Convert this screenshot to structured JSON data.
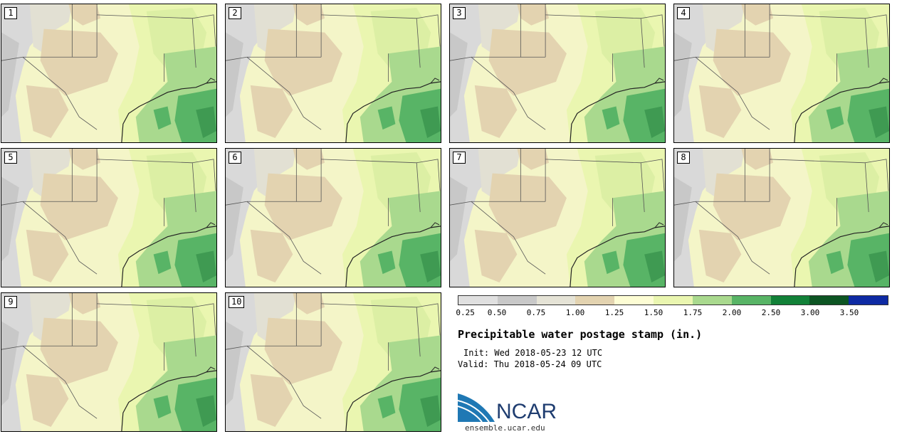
{
  "panels": [
    {
      "label": "1"
    },
    {
      "label": "2"
    },
    {
      "label": "3"
    },
    {
      "label": "4"
    },
    {
      "label": "5"
    },
    {
      "label": "6"
    },
    {
      "label": "7"
    },
    {
      "label": "8"
    },
    {
      "label": "9"
    },
    {
      "label": "10"
    }
  ],
  "colorbar": {
    "colors": [
      "#e0e0e0",
      "#c8c8c8",
      "#e5e3d6",
      "#e3d3b0",
      "#fdfdd4",
      "#eaf6b0",
      "#a9d98e",
      "#58b466",
      "#128138",
      "#0d5523",
      "#0e2aa3"
    ],
    "ticks": [
      "0.25",
      "0.50",
      "0.75",
      "1.00",
      "1.25",
      "1.50",
      "1.75",
      "2.00",
      "2.50",
      "3.00",
      "3.50"
    ]
  },
  "title": "Precipitable water postage stamp (in.)",
  "init": "Init: Wed 2018-05-23 12 UTC",
  "valid": "Valid: Thu 2018-05-24 09 UTC",
  "logo_text": "NCAR",
  "site": "ensemble.ucar.edu"
}
